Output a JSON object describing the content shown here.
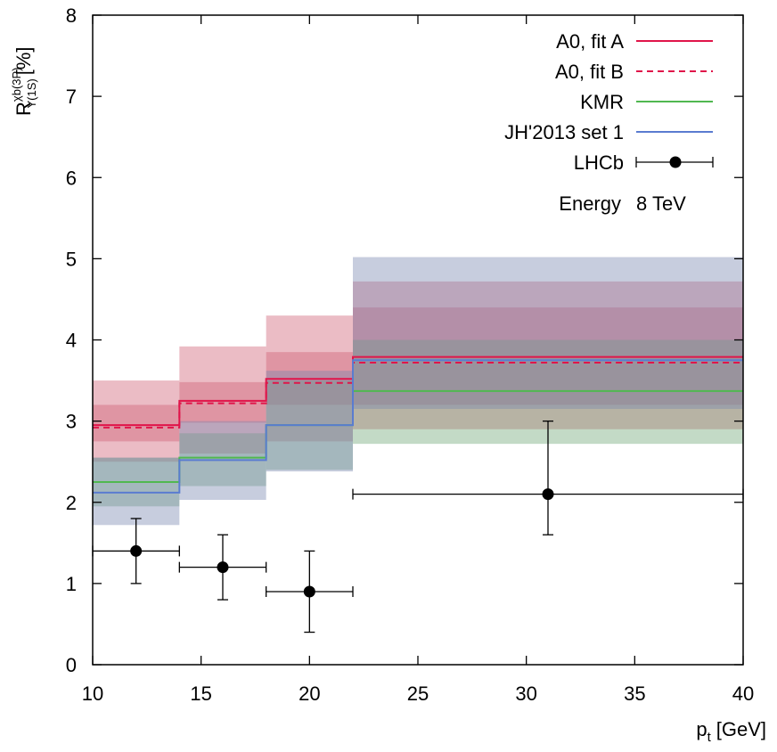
{
  "chart_data": {
    "type": "step",
    "xlabel_main": "p",
    "xlabel_sub": "t",
    "xlabel_unit": "[GeV]",
    "ylabel_main": "R",
    "ylabel_sup": "χb(3P)",
    "ylabel_sub": "Υ(1S)",
    "ylabel_unit": "[%]",
    "xlim": [
      10,
      40
    ],
    "ylim": [
      0,
      8
    ],
    "x_ticks": [
      10,
      15,
      20,
      25,
      30,
      35,
      40
    ],
    "y_ticks": [
      0,
      1,
      2,
      3,
      4,
      5,
      6,
      7,
      8
    ],
    "bin_edges": [
      10,
      14,
      18,
      22,
      40
    ],
    "series": [
      {
        "name": "A0, fit A",
        "style": "solid",
        "color": "#e0154a",
        "values": [
          2.95,
          3.25,
          3.52,
          3.79
        ],
        "band_outer": [
          [
            2.5,
            3.5
          ],
          [
            2.6,
            3.92
          ],
          [
            2.75,
            4.3
          ],
          [
            2.9,
            4.72
          ]
        ],
        "band_inner": [
          [
            2.75,
            3.2
          ],
          [
            2.98,
            3.48
          ],
          [
            3.2,
            3.85
          ],
          [
            3.2,
            4.4
          ]
        ],
        "band_color": "#d06074"
      },
      {
        "name": "A0, fit B",
        "style": "dashed",
        "color": "#e0154a",
        "values": [
          2.92,
          3.22,
          3.47,
          3.72
        ]
      },
      {
        "name": "KMR",
        "style": "solid",
        "color": "#50b850",
        "values": [
          2.25,
          2.55,
          2.95,
          3.37
        ],
        "band_outer": [
          [
            1.95,
            2.55
          ],
          [
            2.2,
            2.85
          ],
          [
            2.4,
            3.5
          ],
          [
            2.72,
            4.0
          ]
        ],
        "band_color": "#6fa878"
      },
      {
        "name": "JH'2013 set 1",
        "style": "solid",
        "color": "#5a7cd0",
        "values": [
          2.12,
          2.52,
          2.95,
          3.75
        ],
        "band_outer": [
          [
            1.72,
            2.55
          ],
          [
            2.03,
            3.0
          ],
          [
            2.38,
            3.62
          ],
          [
            3.15,
            5.02
          ]
        ],
        "band_color": "#7a88b0"
      }
    ],
    "lhcb": {
      "name": "LHCb",
      "points": [
        {
          "x": 12,
          "xlo": 10,
          "xhi": 14,
          "y": 1.4,
          "ylo": 1.0,
          "yhi": 1.8
        },
        {
          "x": 16,
          "xlo": 14,
          "xhi": 18,
          "y": 1.2,
          "ylo": 0.8,
          "yhi": 1.6
        },
        {
          "x": 20,
          "xlo": 18,
          "xhi": 22,
          "y": 0.9,
          "ylo": 0.4,
          "yhi": 1.4
        },
        {
          "x": 31,
          "xlo": 22,
          "xhi": 40,
          "y": 2.1,
          "ylo": 1.6,
          "yhi": 3.0
        }
      ]
    },
    "legend": {
      "position": "top-right",
      "entries": [
        "A0, fit A",
        "A0, fit B",
        "KMR",
        "JH'2013 set 1",
        "LHCb"
      ],
      "energy_label": "Energy",
      "energy_value": "8 TeV"
    }
  }
}
